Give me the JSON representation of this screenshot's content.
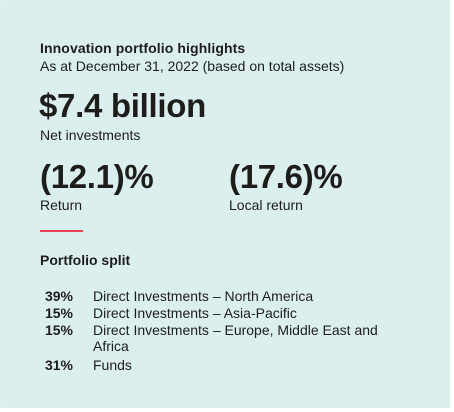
{
  "highlights": {
    "title": "Innovation portfolio highlights",
    "subtitle": "As at December 31, 2022 (based on total assets)",
    "net_investments": {
      "value": "$7.4 billion",
      "label": "Net investments"
    },
    "return": {
      "value": "(12.1)%",
      "label": "Return"
    },
    "local_return": {
      "value": "(17.6)%",
      "label": "Local return"
    },
    "accent_color": "#e8434e",
    "background_color": "#dcefef"
  },
  "portfolio_split": {
    "title": "Portfolio split",
    "rows": [
      {
        "pct": "39%",
        "desc": "Direct Investments – North America"
      },
      {
        "pct": "15%",
        "desc": "Direct Investments – Asia-Pacific"
      },
      {
        "pct": "15%",
        "desc": "Direct Investments – Europe, Middle East and Africa"
      },
      {
        "pct": "31%",
        "desc": "Funds"
      }
    ]
  }
}
